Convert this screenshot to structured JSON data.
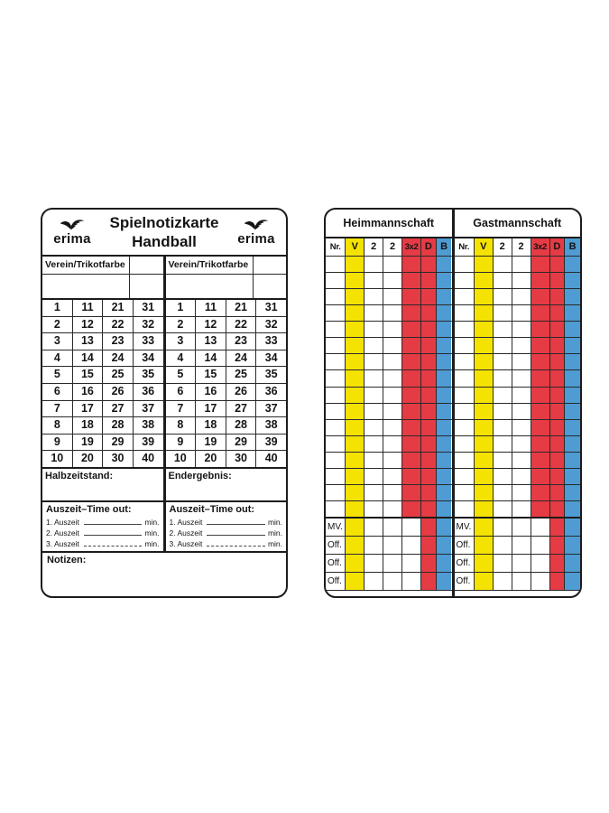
{
  "left_card": {
    "brand": "erima",
    "title": {
      "line1": "Spielnotizkarte",
      "line2": "Handball"
    },
    "team_sections": [
      {
        "verein_label": "Verein/Trikotfarbe",
        "score_label": "Halbzeitstand:"
      },
      {
        "verein_label": "Verein/Trikotfarbe",
        "score_label": "Endergebnis:"
      }
    ],
    "number_grid_rows": [
      [
        1,
        11,
        21,
        31
      ],
      [
        2,
        12,
        22,
        32
      ],
      [
        3,
        13,
        23,
        33
      ],
      [
        4,
        14,
        24,
        34
      ],
      [
        5,
        15,
        25,
        35
      ],
      [
        6,
        16,
        26,
        36
      ],
      [
        7,
        17,
        27,
        37
      ],
      [
        8,
        18,
        28,
        38
      ],
      [
        9,
        19,
        29,
        39
      ],
      [
        10,
        20,
        30,
        40
      ]
    ],
    "timeout": {
      "title": "Auszeit–Time out:",
      "rows": [
        {
          "label": "1. Auszeit",
          "unit": "min."
        },
        {
          "label": "2. Auszeit",
          "unit": "min."
        },
        {
          "label": "3. Auszeit",
          "unit": "min."
        }
      ]
    },
    "notes_label": "Notizen:"
  },
  "right_card": {
    "halves": [
      {
        "title": "Heimmannschaft"
      },
      {
        "title": "Gastmannschaft"
      }
    ],
    "columns": [
      {
        "label": "Nr.",
        "header_bg": "#ffffff",
        "body_bg": "#ffffff",
        "bottom_bg": "#ffffff"
      },
      {
        "label": "V",
        "header_bg": "#f4e300",
        "body_bg": "#f4e300",
        "bottom_bg": "#f4e300"
      },
      {
        "label": "2",
        "header_bg": "#ffffff",
        "body_bg": "#ffffff",
        "bottom_bg": "#ffffff"
      },
      {
        "label": "2",
        "header_bg": "#ffffff",
        "body_bg": "#ffffff",
        "bottom_bg": "#ffffff"
      },
      {
        "label": "3x2",
        "header_bg": "#e53b44",
        "body_bg": "#e53b44",
        "bottom_bg": "#ffffff"
      },
      {
        "label": "D",
        "header_bg": "#e53b44",
        "body_bg": "#e53b44",
        "bottom_bg": "#e53b44"
      },
      {
        "label": "B",
        "header_bg": "#4e9cd3",
        "body_bg": "#4e9cd3",
        "bottom_bg": "#4e9cd3"
      }
    ],
    "body_row_count": 16,
    "bottom_rows": [
      {
        "label": "MV."
      },
      {
        "label": "Off."
      },
      {
        "label": "Off."
      },
      {
        "label": "Off."
      }
    ]
  },
  "colors": {
    "yellow": "#f4e300",
    "red": "#e53b44",
    "blue": "#4e9cd3",
    "ink": "#1c1c1c"
  }
}
